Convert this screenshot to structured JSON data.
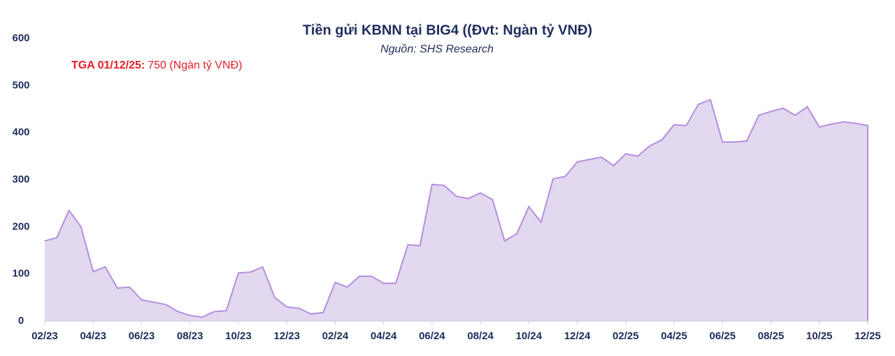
{
  "chart_data": {
    "type": "area",
    "title": "Tiền gửi KBNN tại BIG4 ((Đvt: Ngàn tỷ VNĐ)",
    "subtitle": "Nguồn: SHS Research",
    "annotation": {
      "label": "TGA 01/12/25:",
      "text": "750 (Ngàn tỷ VNĐ)"
    },
    "categories": [
      "02/23",
      null,
      null,
      null,
      "04/23",
      null,
      null,
      null,
      "06/23",
      null,
      null,
      null,
      "08/23",
      null,
      null,
      null,
      "10/23",
      null,
      null,
      null,
      "12/23",
      null,
      null,
      null,
      "02/24",
      null,
      null,
      null,
      "04/24",
      null,
      null,
      null,
      "06/24",
      null,
      null,
      null,
      "08/24",
      null,
      null,
      null,
      "10/24",
      null,
      null,
      null,
      "12/24",
      null,
      null,
      null,
      "02/25",
      null,
      null,
      null,
      "04/25",
      null,
      null,
      null,
      "06/25",
      null,
      null,
      null,
      "08/25",
      null,
      null,
      null,
      "10/25",
      null,
      null,
      null,
      "12/25"
    ],
    "values": [
      170,
      177,
      235,
      200,
      105,
      115,
      70,
      72,
      45,
      40,
      35,
      20,
      12,
      8,
      20,
      22,
      102,
      104,
      115,
      50,
      30,
      27,
      15,
      18,
      82,
      72,
      95,
      95,
      80,
      80,
      162,
      160,
      290,
      288,
      265,
      260,
      272,
      258,
      170,
      185,
      243,
      210,
      302,
      307,
      338,
      343,
      348,
      330,
      355,
      350,
      372,
      385,
      417,
      415,
      460,
      470,
      380,
      380,
      382,
      437,
      445,
      452,
      437,
      455,
      412,
      418,
      423,
      420,
      415
    ],
    "color": "#b48ee0",
    "fill_color": "#e2d8ef",
    "ylim": [
      0,
      600
    ],
    "yticks": [
      0,
      100,
      200,
      300,
      400,
      500,
      600
    ]
  }
}
